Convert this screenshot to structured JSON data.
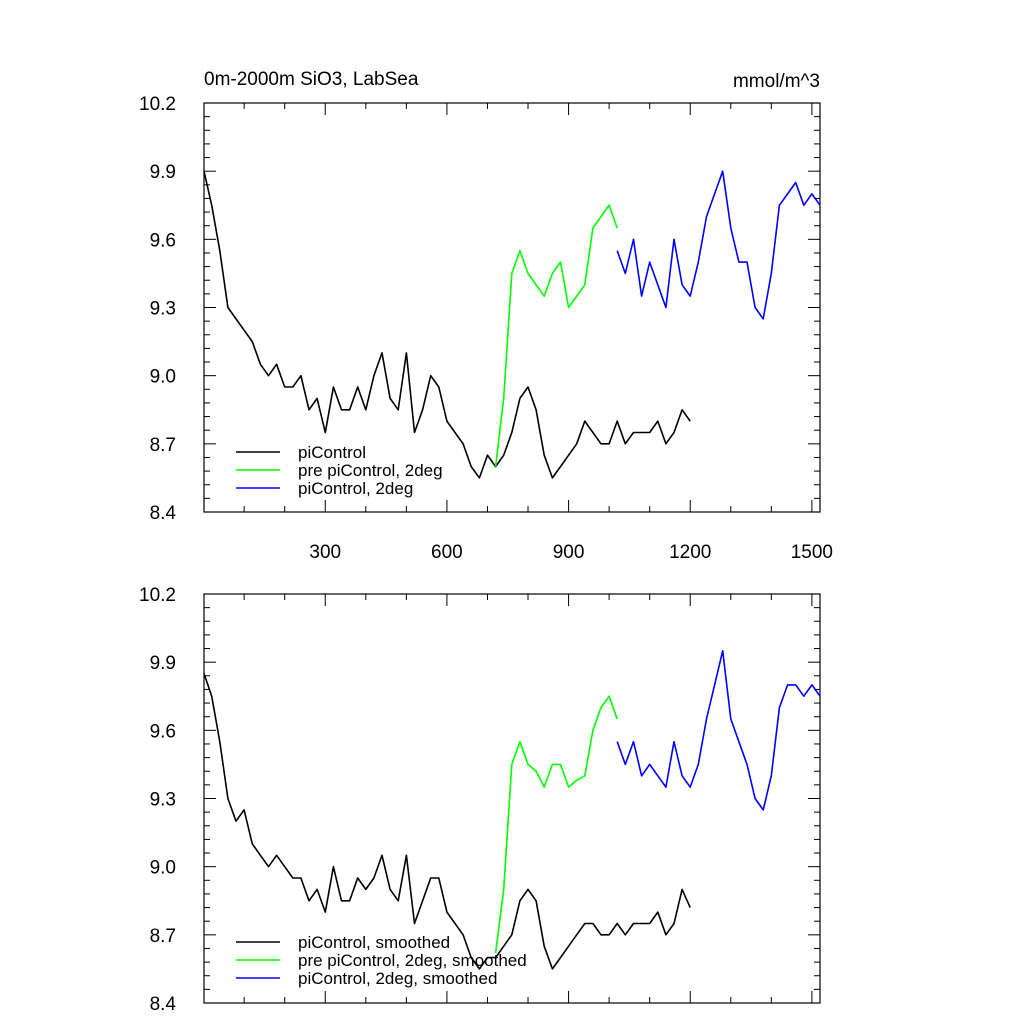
{
  "colors": {
    "piControl": "#000000",
    "pre_piControl_2deg": "#00ff00",
    "piControl_2deg": "#0000ff",
    "axis": "#000000",
    "background": "#ffffff"
  },
  "chart_data": [
    {
      "type": "line",
      "title": "0m-2000m SiO3, LabSea",
      "units": "mmol/m^3",
      "xlim": [
        1,
        1520
      ],
      "ylim": [
        8.4,
        10.2
      ],
      "xticks": [
        300,
        600,
        900,
        1200,
        1500
      ],
      "xtick_labels": [
        "300",
        "600",
        "900",
        "1200",
        "1500"
      ],
      "yticks": [
        8.4,
        8.7,
        9.0,
        9.3,
        9.6,
        9.9,
        10.2
      ],
      "ytick_labels": [
        "8.4",
        "8.7",
        "9.0",
        "9.3",
        "9.6",
        "9.9",
        "10.2"
      ],
      "grid": false,
      "legend_position": "bottom-left",
      "series": [
        {
          "name": "piControl",
          "color": "#000000",
          "x": [
            1,
            20,
            40,
            60,
            80,
            100,
            120,
            140,
            160,
            180,
            200,
            220,
            240,
            260,
            280,
            300,
            320,
            340,
            360,
            380,
            400,
            420,
            440,
            460,
            480,
            500,
            520,
            540,
            560,
            580,
            600,
            620,
            640,
            660,
            680,
            700,
            720,
            740,
            760,
            780,
            800,
            820,
            840,
            860,
            880,
            900,
            920,
            940,
            960,
            980,
            1000,
            1020,
            1040,
            1060,
            1080,
            1100,
            1120,
            1140,
            1160,
            1180,
            1200
          ],
          "y": [
            9.9,
            9.75,
            9.55,
            9.3,
            9.25,
            9.2,
            9.15,
            9.05,
            9.0,
            9.05,
            8.95,
            8.95,
            9.0,
            8.85,
            8.9,
            8.75,
            8.95,
            8.85,
            8.85,
            8.95,
            8.85,
            9.0,
            9.1,
            8.9,
            8.85,
            9.1,
            8.75,
            8.85,
            9.0,
            8.95,
            8.8,
            8.75,
            8.7,
            8.6,
            8.55,
            8.65,
            8.6,
            8.65,
            8.75,
            8.9,
            8.95,
            8.85,
            8.65,
            8.55,
            8.6,
            8.65,
            8.7,
            8.8,
            8.75,
            8.7,
            8.7,
            8.8,
            8.7,
            8.75,
            8.75,
            8.75,
            8.8,
            8.7,
            8.75,
            8.85,
            8.8
          ]
        },
        {
          "name": "pre piControl, 2deg",
          "color": "#00ff00",
          "x": [
            720,
            740,
            760,
            780,
            800,
            820,
            840,
            860,
            880,
            900,
            920,
            940,
            960,
            980,
            1000,
            1020
          ],
          "y": [
            8.6,
            8.9,
            9.45,
            9.55,
            9.45,
            9.4,
            9.35,
            9.45,
            9.5,
            9.3,
            9.35,
            9.4,
            9.65,
            9.7,
            9.75,
            9.65
          ]
        },
        {
          "name": "piControl, 2deg",
          "color": "#0000ff",
          "x": [
            1020,
            1040,
            1060,
            1080,
            1100,
            1120,
            1140,
            1160,
            1180,
            1200,
            1220,
            1240,
            1260,
            1280,
            1300,
            1320,
            1340,
            1360,
            1380,
            1400,
            1420,
            1440,
            1460,
            1480,
            1500,
            1520
          ],
          "y": [
            9.55,
            9.45,
            9.6,
            9.35,
            9.5,
            9.4,
            9.3,
            9.6,
            9.4,
            9.35,
            9.5,
            9.7,
            9.8,
            9.9,
            9.65,
            9.5,
            9.5,
            9.3,
            9.25,
            9.45,
            9.75,
            9.8,
            9.85,
            9.75,
            9.8,
            9.75
          ]
        }
      ]
    },
    {
      "type": "line",
      "xlim": [
        1,
        1520
      ],
      "ylim": [
        8.4,
        10.2
      ],
      "yticks": [
        8.4,
        8.7,
        9.0,
        9.3,
        9.6,
        9.9,
        10.2
      ],
      "ytick_labels": [
        "8.4",
        "8.7",
        "9.0",
        "9.3",
        "9.6",
        "9.9",
        "10.2"
      ],
      "xticks": [
        300,
        600,
        900,
        1200,
        1500
      ],
      "grid": false,
      "legend_position": "bottom-left",
      "series": [
        {
          "name": "piControl, smoothed",
          "color": "#000000",
          "x": [
            1,
            20,
            40,
            60,
            80,
            100,
            120,
            140,
            160,
            180,
            200,
            220,
            240,
            260,
            280,
            300,
            320,
            340,
            360,
            380,
            400,
            420,
            440,
            460,
            480,
            500,
            520,
            540,
            560,
            580,
            600,
            620,
            640,
            660,
            680,
            700,
            720,
            740,
            760,
            780,
            800,
            820,
            840,
            860,
            880,
            900,
            920,
            940,
            960,
            980,
            1000,
            1020,
            1040,
            1060,
            1080,
            1100,
            1120,
            1140,
            1160,
            1180,
            1200
          ],
          "y": [
            9.85,
            9.75,
            9.55,
            9.3,
            9.2,
            9.25,
            9.1,
            9.05,
            9.0,
            9.05,
            9.0,
            8.95,
            8.95,
            8.85,
            8.9,
            8.8,
            9.0,
            8.85,
            8.85,
            8.95,
            8.9,
            8.95,
            9.05,
            8.9,
            8.85,
            9.05,
            8.75,
            8.85,
            8.95,
            8.95,
            8.8,
            8.75,
            8.7,
            8.6,
            8.55,
            8.6,
            8.6,
            8.65,
            8.7,
            8.85,
            8.9,
            8.85,
            8.65,
            8.55,
            8.6,
            8.65,
            8.7,
            8.75,
            8.75,
            8.7,
            8.7,
            8.75,
            8.7,
            8.75,
            8.75,
            8.75,
            8.8,
            8.7,
            8.75,
            8.9,
            8.82
          ]
        },
        {
          "name": "pre piControl, 2deg, smoothed",
          "color": "#00ff00",
          "x": [
            720,
            740,
            760,
            780,
            800,
            820,
            840,
            860,
            880,
            900,
            920,
            940,
            960,
            980,
            1000,
            1020
          ],
          "y": [
            8.62,
            8.9,
            9.45,
            9.55,
            9.45,
            9.42,
            9.35,
            9.45,
            9.45,
            9.35,
            9.38,
            9.4,
            9.6,
            9.7,
            9.75,
            9.65
          ]
        },
        {
          "name": "piControl, 2deg, smoothed",
          "color": "#0000ff",
          "x": [
            1020,
            1040,
            1060,
            1080,
            1100,
            1120,
            1140,
            1160,
            1180,
            1200,
            1220,
            1240,
            1260,
            1280,
            1300,
            1320,
            1340,
            1360,
            1380,
            1400,
            1420,
            1440,
            1460,
            1480,
            1500,
            1520
          ],
          "y": [
            9.55,
            9.45,
            9.55,
            9.4,
            9.45,
            9.4,
            9.35,
            9.55,
            9.4,
            9.35,
            9.45,
            9.65,
            9.8,
            9.95,
            9.65,
            9.55,
            9.45,
            9.3,
            9.25,
            9.4,
            9.7,
            9.8,
            9.8,
            9.75,
            9.8,
            9.75
          ]
        }
      ]
    }
  ]
}
